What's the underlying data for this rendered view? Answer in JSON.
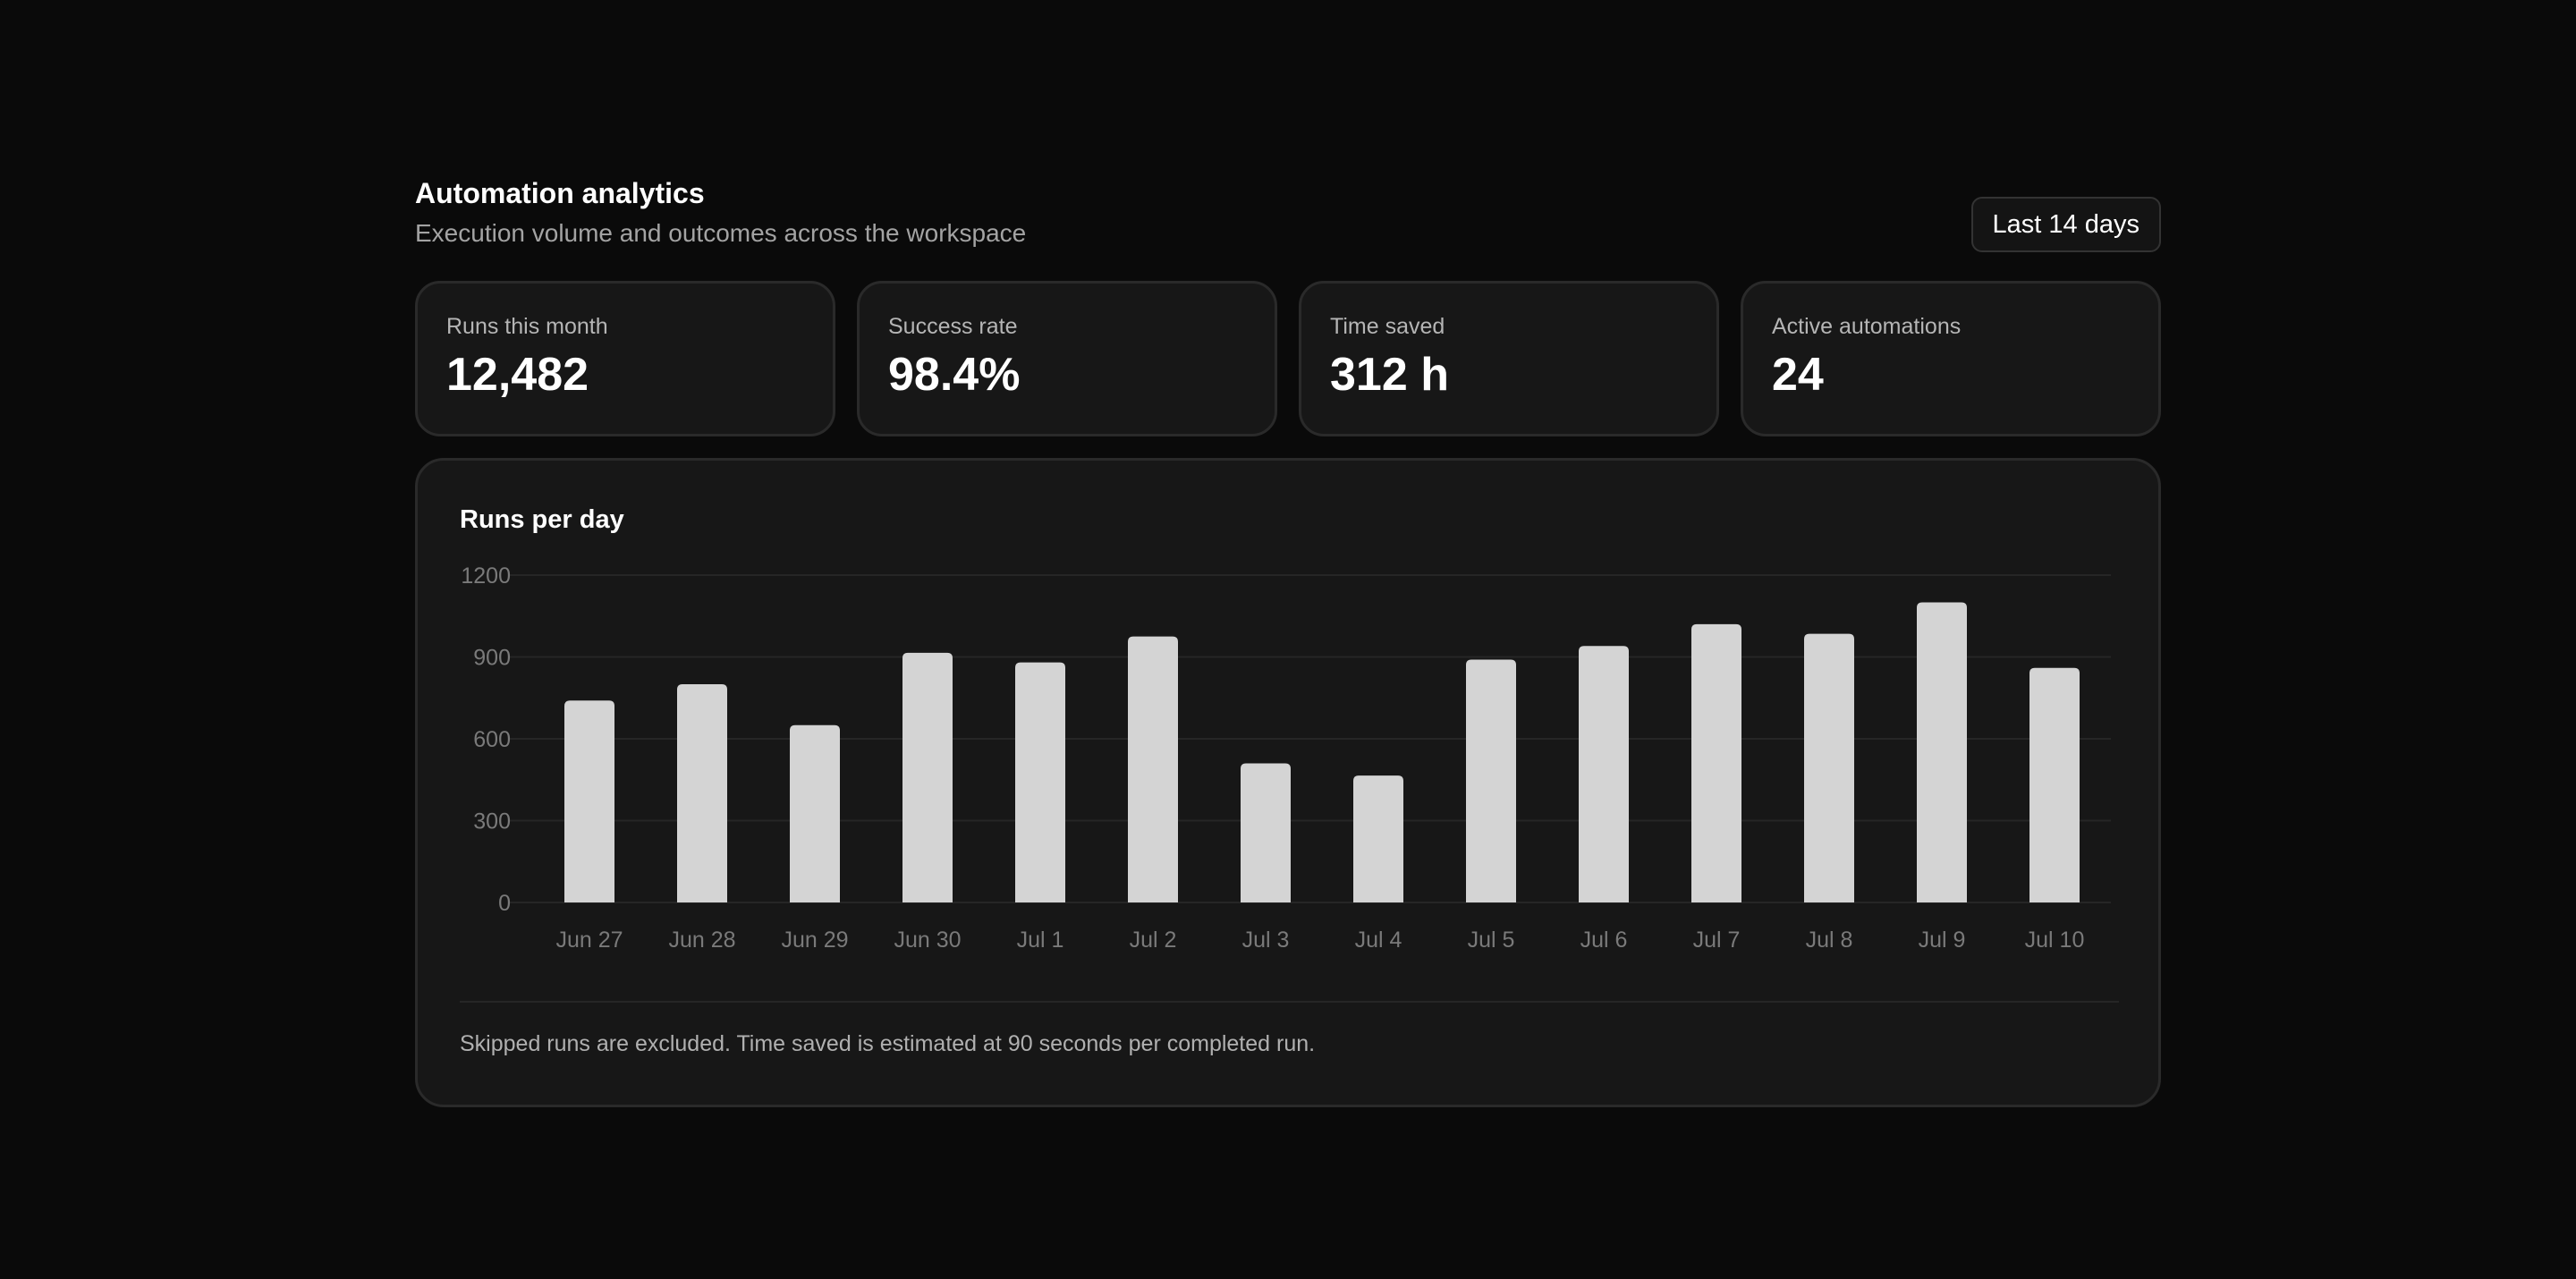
{
  "header": {
    "title": "Automation analytics",
    "subtitle": "Execution volume and outcomes across the workspace",
    "range_label": "Last 14 days"
  },
  "stats": [
    {
      "label": "Runs this month",
      "value": "12,482"
    },
    {
      "label": "Success rate",
      "value": "98.4%"
    },
    {
      "label": "Time saved",
      "value": "312 h"
    },
    {
      "label": "Active automations",
      "value": "24"
    }
  ],
  "chart_data": {
    "type": "bar",
    "title": "Runs per day",
    "categories": [
      "Jun 27",
      "Jun 28",
      "Jun 29",
      "Jun 30",
      "Jul 1",
      "Jul 2",
      "Jul 3",
      "Jul 4",
      "Jul 5",
      "Jul 6",
      "Jul 7",
      "Jul 8",
      "Jul 9",
      "Jul 10"
    ],
    "values": [
      740,
      800,
      650,
      915,
      880,
      975,
      510,
      465,
      890,
      940,
      1020,
      985,
      1100,
      860
    ],
    "ylim": [
      0,
      1200
    ],
    "yticks": [
      0,
      300,
      600,
      900,
      1200
    ],
    "xlabel": "",
    "ylabel": "",
    "grid": true,
    "bar_color": "#d4d4d4"
  },
  "footnote": "Skipped runs are excluded. Time saved is estimated at 90 seconds per completed run."
}
